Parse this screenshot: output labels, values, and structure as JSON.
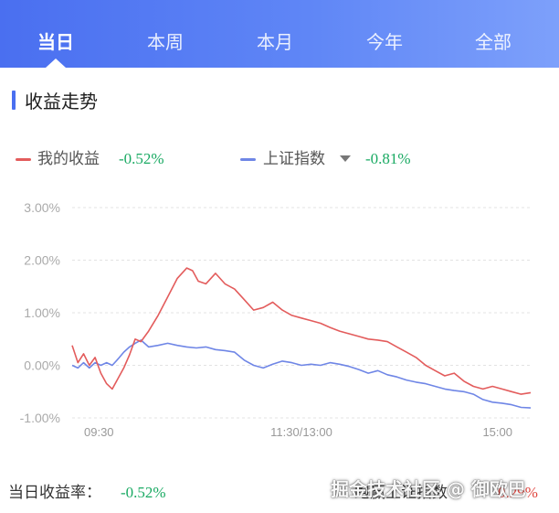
{
  "tabs": [
    {
      "label": "当日",
      "active": true
    },
    {
      "label": "本周",
      "active": false
    },
    {
      "label": "本月",
      "active": false
    },
    {
      "label": "今年",
      "active": false
    },
    {
      "label": "全部",
      "active": false
    }
  ],
  "section": {
    "title": "收益走势"
  },
  "legend": {
    "mine": {
      "label": "我的收益",
      "value": "-0.52%",
      "color": "#e35c5c"
    },
    "index": {
      "label": "上证指数",
      "value": "-0.81%",
      "color": "#6f86e6",
      "icon": "caret-down-icon"
    }
  },
  "chart_data": {
    "type": "line",
    "title": "",
    "xlabel": "",
    "ylabel": "",
    "x_ticks": [
      "09:30",
      "11:30/13:00",
      "15:00"
    ],
    "y_ticks": [
      "3.00%",
      "2.00%",
      "1.00%",
      "0.00%",
      "-1.00%"
    ],
    "ylim": [
      -1.0,
      3.0
    ],
    "grid": "horizontal dashed",
    "x_unit": "trading minutes from 09:30",
    "series": [
      {
        "name": "我的收益",
        "color": "#e35c5c",
        "x": [
          0,
          3,
          6,
          9,
          12,
          15,
          18,
          21,
          24,
          27,
          30,
          33,
          36,
          40,
          45,
          50,
          55,
          60,
          63,
          66,
          70,
          75,
          80,
          85,
          90,
          95,
          100,
          105,
          110,
          115,
          120,
          125,
          130,
          135,
          140,
          145,
          150,
          155,
          160,
          165,
          170,
          175,
          180,
          185,
          190,
          195,
          200,
          205,
          210,
          215,
          220,
          225,
          230,
          235,
          240
        ],
        "values": [
          0.38,
          0.05,
          0.22,
          0.0,
          0.15,
          -0.15,
          -0.35,
          -0.45,
          -0.25,
          -0.05,
          0.2,
          0.5,
          0.45,
          0.65,
          0.95,
          1.3,
          1.65,
          1.85,
          1.8,
          1.6,
          1.55,
          1.75,
          1.55,
          1.45,
          1.25,
          1.05,
          1.1,
          1.2,
          1.05,
          0.95,
          0.9,
          0.85,
          0.8,
          0.72,
          0.65,
          0.6,
          0.55,
          0.5,
          0.48,
          0.45,
          0.35,
          0.25,
          0.15,
          0.0,
          -0.1,
          -0.2,
          -0.15,
          -0.3,
          -0.4,
          -0.45,
          -0.4,
          -0.45,
          -0.5,
          -0.55,
          -0.52
        ]
      },
      {
        "name": "上证指数",
        "color": "#6f86e6",
        "x": [
          0,
          3,
          6,
          9,
          12,
          15,
          18,
          21,
          24,
          27,
          30,
          33,
          36,
          40,
          45,
          50,
          55,
          60,
          65,
          70,
          75,
          80,
          85,
          90,
          95,
          100,
          105,
          110,
          115,
          120,
          125,
          130,
          135,
          140,
          145,
          150,
          155,
          160,
          165,
          170,
          175,
          180,
          185,
          190,
          195,
          200,
          205,
          210,
          215,
          220,
          225,
          230,
          235,
          240
        ],
        "values": [
          0.0,
          -0.05,
          0.05,
          -0.05,
          0.05,
          0.0,
          0.05,
          0.0,
          0.12,
          0.25,
          0.35,
          0.42,
          0.48,
          0.35,
          0.38,
          0.42,
          0.38,
          0.35,
          0.33,
          0.35,
          0.3,
          0.28,
          0.25,
          0.1,
          0.0,
          -0.05,
          0.02,
          0.08,
          0.05,
          0.0,
          0.02,
          0.0,
          0.05,
          0.02,
          -0.02,
          -0.08,
          -0.15,
          -0.1,
          -0.18,
          -0.22,
          -0.28,
          -0.32,
          -0.35,
          -0.4,
          -0.45,
          -0.48,
          -0.5,
          -0.55,
          -0.65,
          -0.7,
          -0.72,
          -0.75,
          -0.8,
          -0.81
        ]
      }
    ]
  },
  "footer": {
    "left_label": "当日收益率：",
    "left_value": "-0.52%",
    "right_label": "跑赢上证指数",
    "right_value": "0.29%",
    "watermark": "掘金技术社区 @ 御欧巴"
  }
}
